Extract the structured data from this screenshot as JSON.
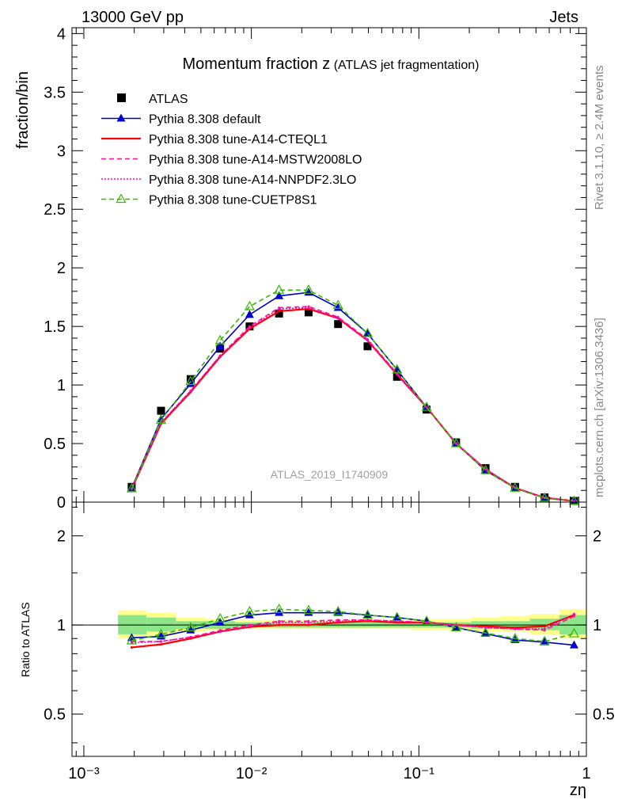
{
  "header": {
    "left": "13000 GeV pp",
    "right": "Jets"
  },
  "side_labels": {
    "rivet": "Rivet 3.1.10, ≥ 2.4M events",
    "mcplots": "mcplots.cern.ch [arXiv:1306.3436]"
  },
  "watermark": "ATLAS_2019_I1740909",
  "chart_data": [
    {
      "type": "line",
      "title_main": "Momentum fraction z",
      "title_sub": "(ATLAS jet fragmentation)",
      "ylabel": "fraction/bin",
      "xscale": "log",
      "xlim": [
        0.00085,
        1.0
      ],
      "ylim": [
        0,
        4.05
      ],
      "yticks": [
        0,
        0.5,
        1,
        1.5,
        2,
        2.5,
        3,
        3.5,
        4
      ],
      "ytick_labels": [
        "0",
        "0.5",
        "1",
        "1.5",
        "2",
        "2.5",
        "3",
        "3.5",
        "4"
      ],
      "legend_position": "top-left",
      "x": [
        0.00193,
        0.00289,
        0.00434,
        0.00651,
        0.00976,
        0.01464,
        0.02196,
        0.03294,
        0.0494,
        0.0741,
        0.1112,
        0.1668,
        0.2501,
        0.3752,
        0.5628,
        0.8442
      ],
      "series": [
        {
          "name": "ATLAS",
          "color": "#000000",
          "style": "marker-square",
          "values": [
            0.13,
            0.78,
            1.05,
            1.31,
            1.5,
            1.61,
            1.62,
            1.52,
            1.33,
            1.07,
            0.79,
            0.51,
            0.29,
            0.13,
            0.04,
            0.01
          ]
        },
        {
          "name": "Pythia 8.308 default",
          "color": "#0000cc",
          "style": "solid-triangle",
          "values": [
            0.12,
            0.71,
            1.01,
            1.33,
            1.6,
            1.76,
            1.79,
            1.66,
            1.44,
            1.13,
            0.81,
            0.5,
            0.27,
            0.12,
            0.035,
            0.0085
          ]
        },
        {
          "name": "Pythia 8.308 tune-A14-CTEQL1",
          "color": "#ff0000",
          "style": "solid",
          "values": [
            0.11,
            0.67,
            0.94,
            1.24,
            1.48,
            1.63,
            1.65,
            1.57,
            1.38,
            1.09,
            0.81,
            0.5,
            0.28,
            0.12,
            0.038,
            0.009
          ]
        },
        {
          "name": "Pythia 8.308 tune-A14-MSTW2008LO",
          "color": "#ff1493",
          "style": "dashed",
          "values": [
            0.115,
            0.68,
            0.95,
            1.25,
            1.5,
            1.66,
            1.67,
            1.58,
            1.39,
            1.1,
            0.81,
            0.5,
            0.28,
            0.125,
            0.039,
            0.0095
          ]
        },
        {
          "name": "Pythia 8.308 tune-A14-NNPDF2.3LO",
          "color": "#ff00cc",
          "style": "dotted",
          "values": [
            0.115,
            0.68,
            0.95,
            1.25,
            1.49,
            1.65,
            1.66,
            1.57,
            1.38,
            1.09,
            0.81,
            0.5,
            0.28,
            0.125,
            0.038,
            0.0093
          ]
        },
        {
          "name": "Pythia 8.308 tune-CUETP8S1",
          "color": "#33bb00",
          "style": "dashed-open-triangle",
          "values": [
            0.115,
            0.7,
            1.03,
            1.38,
            1.67,
            1.81,
            1.81,
            1.68,
            1.44,
            1.13,
            0.81,
            0.5,
            0.27,
            0.12,
            0.035,
            0.0092
          ]
        }
      ]
    },
    {
      "type": "line",
      "ylabel": "Ratio to ATLAS",
      "xlabel": "zη",
      "xscale": "log",
      "yscale": "log",
      "xlim": [
        0.00085,
        1.0
      ],
      "ylim": [
        0.36,
        2.6
      ],
      "yticks": [
        0.5,
        1,
        2
      ],
      "ytick_labels": [
        "0.5",
        "1",
        "2"
      ],
      "xticks": [
        0.001,
        0.01,
        0.1,
        1
      ],
      "xtick_labels": [
        "10⁻³",
        "10⁻²",
        "10⁻¹",
        "1"
      ],
      "band_x_edges": [
        0.0016,
        0.00237,
        0.00355,
        0.00533,
        0.008,
        0.012,
        0.018,
        0.027,
        0.0404,
        0.0606,
        0.0909,
        0.136,
        0.205,
        0.307,
        0.46,
        0.69,
        1.0
      ],
      "band_inner": [
        [
          0.93,
          1.08
        ],
        [
          0.95,
          1.06
        ],
        [
          0.97,
          1.03
        ],
        [
          0.97,
          1.03
        ],
        [
          0.98,
          1.02
        ],
        [
          0.98,
          1.02
        ],
        [
          0.98,
          1.02
        ],
        [
          0.98,
          1.02
        ],
        [
          0.98,
          1.02
        ],
        [
          0.98,
          1.02
        ],
        [
          0.98,
          1.02
        ],
        [
          0.98,
          1.02
        ],
        [
          0.97,
          1.03
        ],
        [
          0.97,
          1.03
        ],
        [
          0.96,
          1.05
        ],
        [
          0.93,
          1.08
        ]
      ],
      "band_outer": [
        [
          0.9,
          1.12
        ],
        [
          0.92,
          1.1
        ],
        [
          0.95,
          1.06
        ],
        [
          0.96,
          1.05
        ],
        [
          0.97,
          1.04
        ],
        [
          0.97,
          1.04
        ],
        [
          0.97,
          1.04
        ],
        [
          0.97,
          1.04
        ],
        [
          0.97,
          1.04
        ],
        [
          0.97,
          1.04
        ],
        [
          0.96,
          1.05
        ],
        [
          0.96,
          1.05
        ],
        [
          0.95,
          1.06
        ],
        [
          0.95,
          1.07
        ],
        [
          0.93,
          1.09
        ],
        [
          0.9,
          1.13
        ]
      ],
      "x": [
        0.00193,
        0.00289,
        0.00434,
        0.00651,
        0.00976,
        0.01464,
        0.02196,
        0.03294,
        0.0494,
        0.0741,
        0.1112,
        0.1668,
        0.2501,
        0.3752,
        0.5628,
        0.8442
      ],
      "series": [
        {
          "name": "Pythia 8.308 default",
          "color": "#0000cc",
          "style": "solid-triangle",
          "values": [
            0.905,
            0.915,
            0.96,
            1.02,
            1.08,
            1.1,
            1.1,
            1.1,
            1.08,
            1.06,
            1.03,
            0.98,
            0.935,
            0.89,
            0.875,
            0.855
          ]
        },
        {
          "name": "Pythia 8.308 tune-A14-CTEQL1",
          "color": "#ff0000",
          "style": "solid",
          "values": [
            0.84,
            0.86,
            0.9,
            0.95,
            0.985,
            1.0,
            1.0,
            1.02,
            1.03,
            1.02,
            1.02,
            1.0,
            0.99,
            0.98,
            0.99,
            1.08
          ]
        },
        {
          "name": "Pythia 8.308 tune-A14-MSTW2008LO",
          "color": "#ff1493",
          "style": "dashed",
          "values": [
            0.88,
            0.88,
            0.91,
            0.96,
            1.0,
            1.03,
            1.03,
            1.04,
            1.04,
            1.03,
            1.02,
            1.0,
            0.98,
            0.97,
            0.96,
            1.07
          ]
        },
        {
          "name": "Pythia 8.308 tune-A14-NNPDF2.3LO",
          "color": "#ff00cc",
          "style": "dotted",
          "values": [
            0.87,
            0.88,
            0.91,
            0.95,
            0.99,
            1.02,
            1.02,
            1.03,
            1.04,
            1.03,
            1.02,
            1.0,
            0.98,
            0.97,
            0.97,
            1.09
          ]
        },
        {
          "name": "Pythia 8.308 tune-CUETP8S1",
          "color": "#33bb00",
          "style": "dashed-open-triangle",
          "values": [
            0.885,
            0.93,
            0.98,
            1.05,
            1.11,
            1.13,
            1.12,
            1.11,
            1.08,
            1.06,
            1.03,
            0.98,
            0.94,
            0.9,
            0.88,
            0.935
          ]
        }
      ]
    }
  ]
}
